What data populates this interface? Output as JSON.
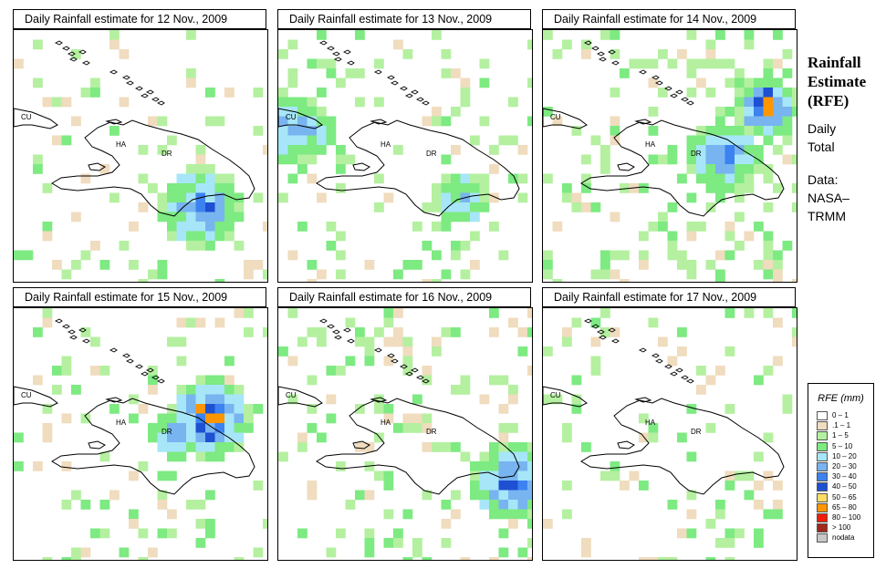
{
  "panels": [
    {
      "title": "Daily Rainfall estimate for  12 Nov., 2009",
      "seed": 12,
      "boost": [
        {
          "cx": 205,
          "cy": 195,
          "r": 45,
          "w": 2.3
        }
      ],
      "wet": 0.08
    },
    {
      "title": "Daily Rainfall estimate for  13 Nov., 2009",
      "seed": 13,
      "boost": [
        {
          "cx": 20,
          "cy": 110,
          "r": 40,
          "w": 1.8
        },
        {
          "cx": 200,
          "cy": 185,
          "r": 30,
          "w": 1.4
        }
      ],
      "wet": 0.13
    },
    {
      "title": "Daily Rainfall estimate for  14 Nov., 2009",
      "seed": 14,
      "boost": [
        {
          "cx": 245,
          "cy": 85,
          "r": 35,
          "w": 3.6
        },
        {
          "cx": 200,
          "cy": 140,
          "r": 40,
          "w": 2.4
        }
      ],
      "wet": 0.16
    },
    {
      "title": "Daily Rainfall estimate for  15 Nov., 2009",
      "seed": 15,
      "boost": [
        {
          "cx": 215,
          "cy": 120,
          "r": 45,
          "w": 3.3
        },
        {
          "cx": 175,
          "cy": 140,
          "r": 25,
          "w": 2.6
        }
      ],
      "wet": 0.1
    },
    {
      "title": "Daily Rainfall estimate for  16 Nov., 2009",
      "seed": 16,
      "boost": [
        {
          "cx": 255,
          "cy": 190,
          "r": 45,
          "w": 2.7
        }
      ],
      "wet": 0.12
    },
    {
      "title": "Daily Rainfall estimate for  17 Nov., 2009",
      "seed": 17,
      "boost": [],
      "wet": 0.09
    }
  ],
  "map_labels": {
    "cu": "CU",
    "ha": "HA",
    "dr": "DR"
  },
  "side": {
    "title_lines": [
      "Rainfall",
      "Estimate",
      "(RFE)"
    ],
    "daily": "Daily",
    "total": "Total",
    "data_label": "Data:",
    "nasa": "NASA–",
    "trmm": "TRMM"
  },
  "legend": {
    "title": "RFE (mm)",
    "items": [
      {
        "label": "0 – 1",
        "color": "#ffffff"
      },
      {
        "label": ".1 – 1",
        "color": "#f0dcbe"
      },
      {
        "label": "1 – 5",
        "color": "#b4f0a0"
      },
      {
        "label": "5 – 10",
        "color": "#7dea82"
      },
      {
        "label": "10 – 20",
        "color": "#a6e6f8"
      },
      {
        "label": "20 – 30",
        "color": "#78b4f0"
      },
      {
        "label": "30 – 40",
        "color": "#3c82f0"
      },
      {
        "label": "40 – 50",
        "color": "#1e50d2"
      },
      {
        "label": "50 – 65",
        "color": "#ffdc64"
      },
      {
        "label": "65 – 80",
        "color": "#ff9600"
      },
      {
        "label": "80 – 100",
        "color": "#f01e0a"
      },
      {
        "label": "> 100",
        "color": "#a0281e"
      },
      {
        "label": "nodata",
        "color": "#c8c8c8"
      }
    ]
  }
}
